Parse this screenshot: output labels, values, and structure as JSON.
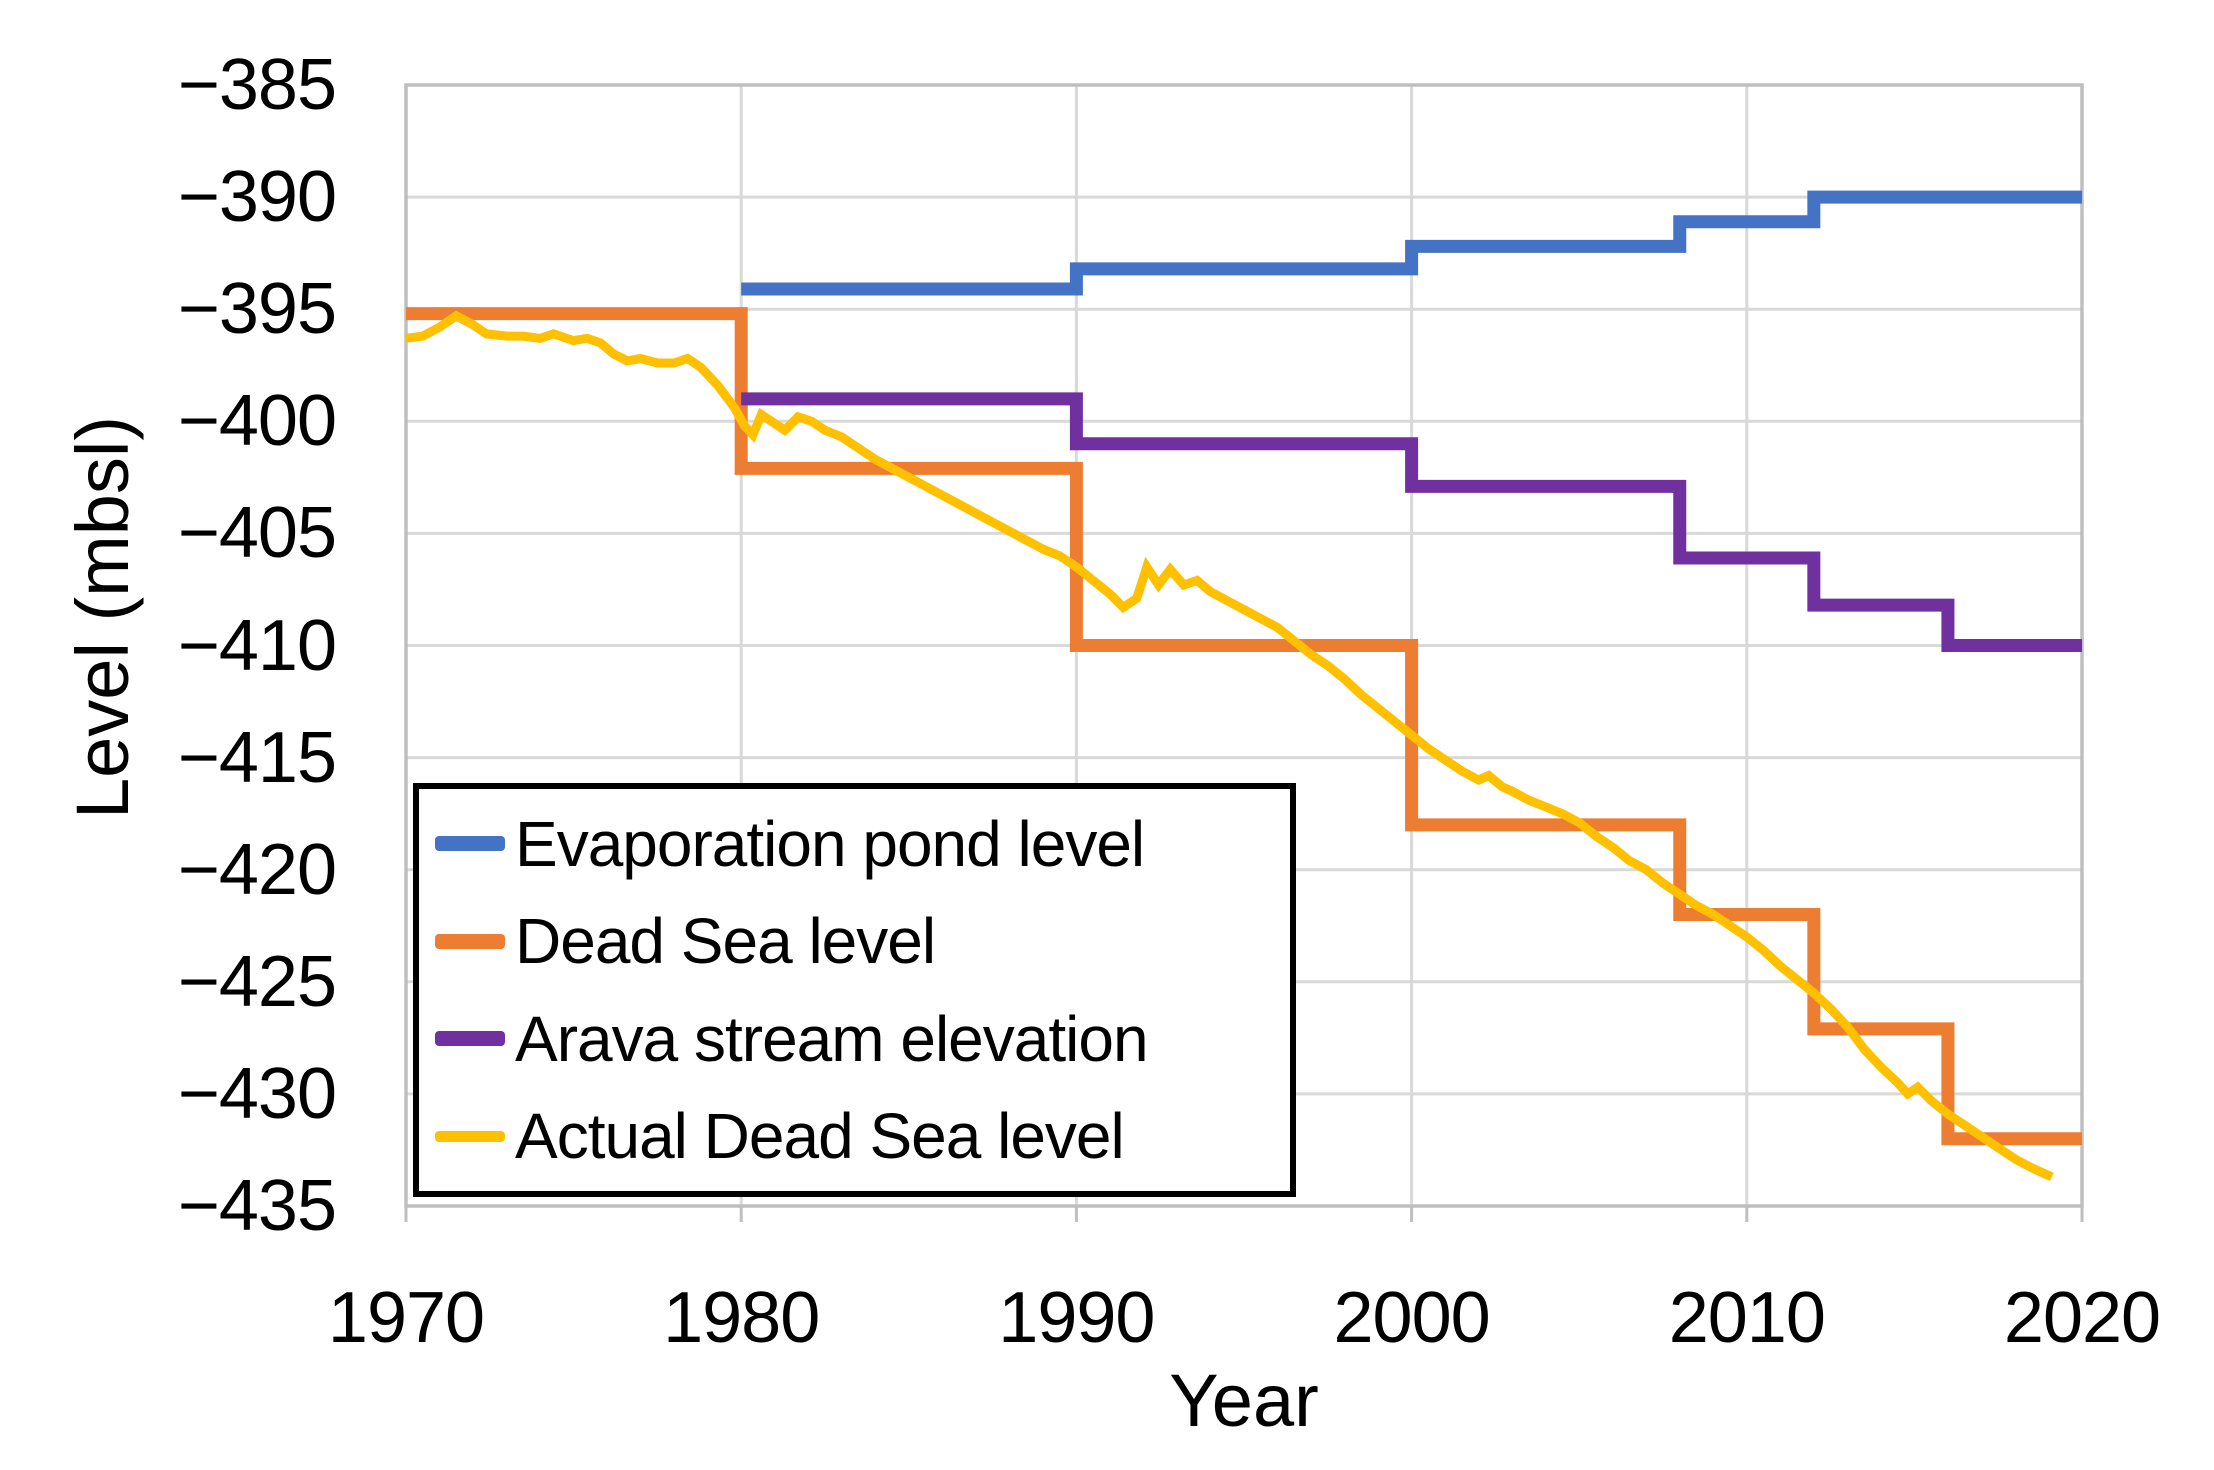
{
  "chart_data": {
    "type": "line",
    "title": "",
    "xlabel": "Year",
    "ylabel": "Level (mbsl)",
    "x_range": [
      1970,
      2020
    ],
    "y_range": [
      -435,
      -385
    ],
    "grid": true,
    "legend_position": "inside-bottom-left",
    "colors": {
      "gridline": "#D9D9D9",
      "axis_line": "#BFBFBF",
      "text": "#000000",
      "legend_border": "#000000",
      "background": "#FFFFFF"
    },
    "y_ticks": [
      {
        "label": "−385",
        "value": -385
      },
      {
        "label": "−390",
        "value": -390
      },
      {
        "label": "−395",
        "value": -395
      },
      {
        "label": "−400",
        "value": -400
      },
      {
        "label": "−405",
        "value": -405
      },
      {
        "label": "−410",
        "value": -410
      },
      {
        "label": "−415",
        "value": -415
      },
      {
        "label": "−420",
        "value": -420
      },
      {
        "label": "−425",
        "value": -425
      },
      {
        "label": "−430",
        "value": -430
      },
      {
        "label": "−435",
        "value": -435
      }
    ],
    "x_ticks": [
      {
        "label": "1970",
        "value": 1970
      },
      {
        "label": "1980",
        "value": 1980
      },
      {
        "label": "1990",
        "value": 1990
      },
      {
        "label": "2000",
        "value": 2000
      },
      {
        "label": "2010",
        "value": 2010
      },
      {
        "label": "2020",
        "value": 2020
      }
    ],
    "series": [
      {
        "name": "Evaporation pond level",
        "color": "#4472C4",
        "line_width": 13,
        "style": "step",
        "end_x": 2020,
        "points": [
          [
            1980,
            -394.1
          ],
          [
            1990,
            -393.2
          ],
          [
            2000,
            -392.2
          ],
          [
            2008,
            -391.1
          ],
          [
            2012,
            -390.0
          ]
        ]
      },
      {
        "name": "Dead Sea level",
        "color": "#ED7D31",
        "line_width": 13,
        "style": "step",
        "end_x": 2020,
        "points": [
          [
            1970,
            -395.2
          ],
          [
            1980,
            -402.1
          ],
          [
            1990,
            -410.0
          ],
          [
            2000,
            -418.0
          ],
          [
            2008,
            -422.0
          ],
          [
            2012,
            -427.1
          ],
          [
            2016,
            -432.0
          ]
        ]
      },
      {
        "name": "Arava stream elevation",
        "color": "#7030A0",
        "line_width": 13,
        "style": "step",
        "end_x": 2020,
        "points": [
          [
            1980,
            -399.0
          ],
          [
            1990,
            -401.0
          ],
          [
            2000,
            -402.9
          ],
          [
            2008,
            -406.1
          ],
          [
            2012,
            -408.2
          ],
          [
            2016,
            -410.0
          ]
        ]
      },
      {
        "name": "Actual Dead Sea level",
        "color": "#FFC000",
        "line_width": 9,
        "style": "line",
        "points": [
          [
            1970.0,
            -396.3
          ],
          [
            1970.5,
            -396.2
          ],
          [
            1971.0,
            -395.8
          ],
          [
            1971.5,
            -395.3
          ],
          [
            1972.0,
            -395.7
          ],
          [
            1972.4,
            -396.1
          ],
          [
            1973.0,
            -396.2
          ],
          [
            1973.5,
            -396.2
          ],
          [
            1974.0,
            -396.3
          ],
          [
            1974.4,
            -396.1
          ],
          [
            1975.0,
            -396.4
          ],
          [
            1975.4,
            -396.3
          ],
          [
            1975.8,
            -396.5
          ],
          [
            1976.2,
            -397.0
          ],
          [
            1976.6,
            -397.3
          ],
          [
            1977.0,
            -397.2
          ],
          [
            1977.5,
            -397.4
          ],
          [
            1978.0,
            -397.4
          ],
          [
            1978.4,
            -397.2
          ],
          [
            1978.8,
            -397.6
          ],
          [
            1979.3,
            -398.4
          ],
          [
            1979.8,
            -399.4
          ],
          [
            1980.1,
            -400.2
          ],
          [
            1980.35,
            -400.6
          ],
          [
            1980.6,
            -399.7
          ],
          [
            1981.0,
            -400.1
          ],
          [
            1981.3,
            -400.4
          ],
          [
            1981.7,
            -399.8
          ],
          [
            1982.1,
            -400.0
          ],
          [
            1982.5,
            -400.4
          ],
          [
            1983.0,
            -400.7
          ],
          [
            1983.5,
            -401.2
          ],
          [
            1984.0,
            -401.7
          ],
          [
            1984.5,
            -402.1
          ],
          [
            1985.0,
            -402.5
          ],
          [
            1985.5,
            -402.9
          ],
          [
            1986.0,
            -403.3
          ],
          [
            1986.5,
            -403.7
          ],
          [
            1987.0,
            -404.1
          ],
          [
            1987.5,
            -404.5
          ],
          [
            1988.0,
            -404.9
          ],
          [
            1988.5,
            -405.3
          ],
          [
            1989.0,
            -405.7
          ],
          [
            1989.5,
            -406.0
          ],
          [
            1990.0,
            -406.5
          ],
          [
            1990.5,
            -407.1
          ],
          [
            1991.0,
            -407.7
          ],
          [
            1991.4,
            -408.3
          ],
          [
            1991.8,
            -407.9
          ],
          [
            1992.1,
            -406.5
          ],
          [
            1992.45,
            -407.3
          ],
          [
            1992.8,
            -406.6
          ],
          [
            1993.2,
            -407.3
          ],
          [
            1993.6,
            -407.1
          ],
          [
            1994.0,
            -407.6
          ],
          [
            1994.5,
            -408.0
          ],
          [
            1995.0,
            -408.4
          ],
          [
            1995.5,
            -408.8
          ],
          [
            1996.0,
            -409.2
          ],
          [
            1996.5,
            -409.8
          ],
          [
            1997.0,
            -410.4
          ],
          [
            1997.5,
            -410.9
          ],
          [
            1998.0,
            -411.5
          ],
          [
            1998.5,
            -412.2
          ],
          [
            1999.0,
            -412.8
          ],
          [
            1999.5,
            -413.4
          ],
          [
            2000.0,
            -414.0
          ],
          [
            2000.5,
            -414.6
          ],
          [
            2001.0,
            -415.1
          ],
          [
            2001.5,
            -415.6
          ],
          [
            2002.0,
            -416.0
          ],
          [
            2002.3,
            -415.8
          ],
          [
            2002.7,
            -416.3
          ],
          [
            2003.0,
            -416.5
          ],
          [
            2003.5,
            -416.9
          ],
          [
            2004.0,
            -417.2
          ],
          [
            2004.5,
            -417.5
          ],
          [
            2005.0,
            -417.9
          ],
          [
            2005.5,
            -418.5
          ],
          [
            2006.0,
            -419.0
          ],
          [
            2006.5,
            -419.6
          ],
          [
            2007.0,
            -420.0
          ],
          [
            2007.5,
            -420.6
          ],
          [
            2008.0,
            -421.1
          ],
          [
            2008.5,
            -421.6
          ],
          [
            2009.0,
            -422.0
          ],
          [
            2009.5,
            -422.5
          ],
          [
            2010.0,
            -423.0
          ],
          [
            2010.5,
            -423.6
          ],
          [
            2011.0,
            -424.3
          ],
          [
            2011.5,
            -424.9
          ],
          [
            2012.0,
            -425.5
          ],
          [
            2012.5,
            -426.2
          ],
          [
            2013.0,
            -427.0
          ],
          [
            2013.5,
            -428.0
          ],
          [
            2014.0,
            -428.8
          ],
          [
            2014.5,
            -429.5
          ],
          [
            2014.8,
            -430.0
          ],
          [
            2015.1,
            -429.7
          ],
          [
            2015.5,
            -430.3
          ],
          [
            2016.0,
            -430.9
          ],
          [
            2016.5,
            -431.4
          ],
          [
            2017.0,
            -431.9
          ],
          [
            2017.5,
            -432.4
          ],
          [
            2018.0,
            -432.9
          ],
          [
            2018.5,
            -433.3
          ],
          [
            2019.1,
            -433.7
          ]
        ]
      }
    ]
  }
}
